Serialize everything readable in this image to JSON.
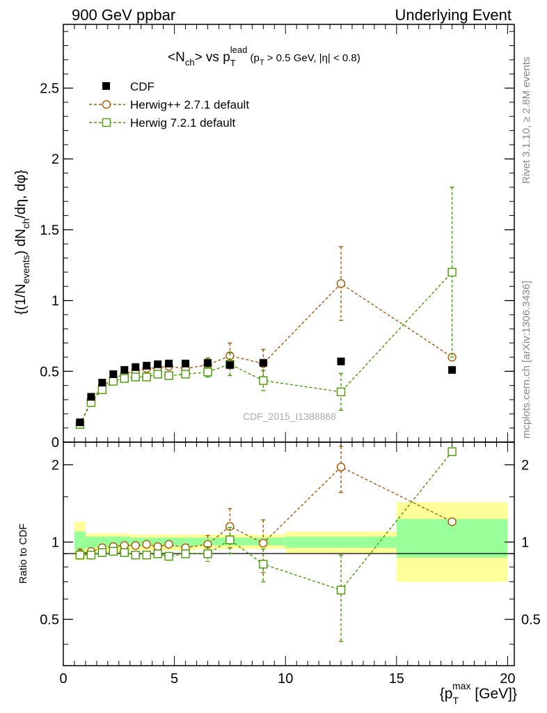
{
  "header": {
    "left": "900 GeV ppbar",
    "right": "Underlying Event"
  },
  "side_labels": {
    "rivet": "Rivet 3.1.10, ≥ 2.8M events",
    "mcplots": "mcplots.cern.ch [arXiv:1306.3436]"
  },
  "watermark": "CDF_2015_I1388868",
  "chart_data": [
    {
      "type": "scatter",
      "title": {
        "prefix": "<N",
        "sub1": "ch",
        "mid": "> vs p",
        "sub2": "T",
        "sup2": "lead",
        "cut_a": " (p",
        "cut_sub": "T",
        "cut_b": " > 0.5 GeV, |η| < 0.8)"
      },
      "ylabel": {
        "p1": "{(1/N",
        "sub1": "events",
        "p2": ") dN",
        "sub2": "ch",
        "p3": "/dη, dφ}"
      },
      "ylim": [
        0,
        2.95
      ],
      "yticks": [
        {
          "v": 0,
          "label": "0"
        },
        {
          "v": 0.5,
          "label": "0.5"
        },
        {
          "v": 1,
          "label": "1"
        },
        {
          "v": 1.5,
          "label": "1.5"
        },
        {
          "v": 2,
          "label": "2"
        },
        {
          "v": 2.5,
          "label": "2.5"
        }
      ],
      "xlim": [
        0,
        20.3
      ],
      "legend_position": "top-left",
      "series": [
        {
          "name": "CDF",
          "color": "#000000",
          "marker": "filled-square",
          "points": [
            {
              "x": 0.75,
              "y": 0.14
            },
            {
              "x": 1.25,
              "y": 0.32
            },
            {
              "x": 1.75,
              "y": 0.42
            },
            {
              "x": 2.25,
              "y": 0.48
            },
            {
              "x": 2.75,
              "y": 0.51
            },
            {
              "x": 3.25,
              "y": 0.53
            },
            {
              "x": 3.75,
              "y": 0.54
            },
            {
              "x": 4.25,
              "y": 0.55
            },
            {
              "x": 4.75,
              "y": 0.555
            },
            {
              "x": 5.5,
              "y": 0.555
            },
            {
              "x": 6.5,
              "y": 0.56
            },
            {
              "x": 7.5,
              "y": 0.545
            },
            {
              "x": 9.0,
              "y": 0.56
            },
            {
              "x": 12.5,
              "y": 0.57
            },
            {
              "x": 17.5,
              "y": 0.51
            }
          ]
        },
        {
          "name": "Herwig++ 2.7.1 default",
          "color": "#aa5500",
          "marker": "open-circle",
          "points": [
            {
              "x": 0.75,
              "y": 0.125,
              "err": 0.01
            },
            {
              "x": 1.25,
              "y": 0.29,
              "err": 0.015
            },
            {
              "x": 1.75,
              "y": 0.39,
              "err": 0.015
            },
            {
              "x": 2.25,
              "y": 0.45,
              "err": 0.015
            },
            {
              "x": 2.75,
              "y": 0.48,
              "err": 0.015
            },
            {
              "x": 3.25,
              "y": 0.505,
              "err": 0.015
            },
            {
              "x": 3.75,
              "y": 0.52,
              "err": 0.02
            },
            {
              "x": 4.25,
              "y": 0.525,
              "err": 0.02
            },
            {
              "x": 4.75,
              "y": 0.535,
              "err": 0.02
            },
            {
              "x": 5.5,
              "y": 0.52,
              "err": 0.02
            },
            {
              "x": 6.5,
              "y": 0.545,
              "err": 0.05
            },
            {
              "x": 7.5,
              "y": 0.61,
              "err": 0.09
            },
            {
              "x": 9.0,
              "y": 0.555,
              "err": 0.1
            },
            {
              "x": 12.5,
              "y": 1.12,
              "err": 0.26
            },
            {
              "x": 17.5,
              "y": 0.6,
              "err": 0
            }
          ]
        },
        {
          "name": "Herwig 7.2.1 default",
          "color": "#449900",
          "marker": "open-square",
          "points": [
            {
              "x": 0.75,
              "y": 0.125,
              "err": 0.01
            },
            {
              "x": 1.25,
              "y": 0.28,
              "err": 0.015
            },
            {
              "x": 1.75,
              "y": 0.37,
              "err": 0.015
            },
            {
              "x": 2.25,
              "y": 0.43,
              "err": 0.015
            },
            {
              "x": 2.75,
              "y": 0.45,
              "err": 0.015
            },
            {
              "x": 3.25,
              "y": 0.46,
              "err": 0.015
            },
            {
              "x": 3.75,
              "y": 0.46,
              "err": 0.015
            },
            {
              "x": 4.25,
              "y": 0.48,
              "err": 0.02
            },
            {
              "x": 4.75,
              "y": 0.47,
              "err": 0.02
            },
            {
              "x": 5.5,
              "y": 0.48,
              "err": 0.02
            },
            {
              "x": 6.5,
              "y": 0.495,
              "err": 0.035
            },
            {
              "x": 7.5,
              "y": 0.55,
              "err": 0.08
            },
            {
              "x": 9.0,
              "y": 0.435,
              "err": 0.07
            },
            {
              "x": 12.5,
              "y": 0.355,
              "err": 0.13
            },
            {
              "x": 17.5,
              "y": 1.2,
              "err": 0.6
            }
          ]
        }
      ]
    },
    {
      "type": "scatter",
      "ylabel": "Ratio to CDF",
      "xlabel": {
        "p1": "{p",
        "sub": "T",
        "sup": "max",
        "p2": " [GeV]}"
      },
      "ylim": [
        0.33,
        2.45
      ],
      "yticks": [
        {
          "v": 0.5,
          "label": "0.5"
        },
        {
          "v": 1,
          "label": "1"
        },
        {
          "v": 2,
          "label": "2"
        }
      ],
      "xlim": [
        0,
        20.3
      ],
      "xticks": [
        {
          "v": 0,
          "label": "0"
        },
        {
          "v": 5,
          "label": "5"
        },
        {
          "v": 10,
          "label": "10"
        },
        {
          "v": 15,
          "label": "15"
        },
        {
          "v": 20,
          "label": "20"
        }
      ],
      "bands": [
        {
          "x0": 0.5,
          "x1": 1.0,
          "green": [
            0.93,
            1.1
          ],
          "yellow": [
            0.85,
            1.2
          ]
        },
        {
          "x0": 1.0,
          "x1": 3.0,
          "green": [
            0.95,
            1.05
          ],
          "yellow": [
            0.92,
            1.08
          ]
        },
        {
          "x0": 3.0,
          "x1": 6.0,
          "green": [
            0.96,
            1.04
          ],
          "yellow": [
            0.93,
            1.07
          ]
        },
        {
          "x0": 6.0,
          "x1": 10.0,
          "green": [
            0.97,
            1.04
          ],
          "yellow": [
            0.94,
            1.07
          ]
        },
        {
          "x0": 10.0,
          "x1": 15.0,
          "green": [
            0.95,
            1.05
          ],
          "yellow": [
            0.9,
            1.1
          ]
        },
        {
          "x0": 15.0,
          "x1": 20.0,
          "green": [
            0.87,
            1.23
          ],
          "yellow": [
            0.7,
            1.43
          ]
        }
      ],
      "series": [
        {
          "name": "Herwig++ 2.7.1 default",
          "color": "#aa5500",
          "marker": "open-circle",
          "points": [
            {
              "x": 0.75,
              "y": 0.9,
              "err": 0.04
            },
            {
              "x": 1.25,
              "y": 0.92,
              "err": 0.03
            },
            {
              "x": 1.75,
              "y": 0.95,
              "err": 0.03
            },
            {
              "x": 2.25,
              "y": 0.96,
              "err": 0.03
            },
            {
              "x": 2.75,
              "y": 0.97,
              "err": 0.02
            },
            {
              "x": 3.25,
              "y": 0.97,
              "err": 0.02
            },
            {
              "x": 3.75,
              "y": 0.98,
              "err": 0.02
            },
            {
              "x": 4.25,
              "y": 0.96,
              "err": 0.02
            },
            {
              "x": 4.75,
              "y": 0.98,
              "err": 0.02
            },
            {
              "x": 5.5,
              "y": 0.95,
              "err": 0.03
            },
            {
              "x": 6.5,
              "y": 0.98,
              "err": 0.08
            },
            {
              "x": 7.5,
              "y": 1.15,
              "err": 0.2
            },
            {
              "x": 9.0,
              "y": 0.99,
              "err": 0.23
            },
            {
              "x": 12.5,
              "y": 1.96,
              "err": 0.4
            },
            {
              "x": 17.5,
              "y": 1.2,
              "err": 0
            }
          ]
        },
        {
          "name": "Herwig 7.2.1 default",
          "color": "#449900",
          "marker": "open-square",
          "points": [
            {
              "x": 0.75,
              "y": 0.89,
              "err": 0.03
            },
            {
              "x": 1.25,
              "y": 0.89,
              "err": 0.03
            },
            {
              "x": 1.75,
              "y": 0.91,
              "err": 0.03
            },
            {
              "x": 2.25,
              "y": 0.92,
              "err": 0.03
            },
            {
              "x": 2.75,
              "y": 0.91,
              "err": 0.02
            },
            {
              "x": 3.25,
              "y": 0.89,
              "err": 0.02
            },
            {
              "x": 3.75,
              "y": 0.89,
              "err": 0.02
            },
            {
              "x": 4.25,
              "y": 0.9,
              "err": 0.03
            },
            {
              "x": 4.75,
              "y": 0.88,
              "err": 0.03
            },
            {
              "x": 5.5,
              "y": 0.9,
              "err": 0.03
            },
            {
              "x": 6.5,
              "y": 0.9,
              "err": 0.06
            },
            {
              "x": 7.5,
              "y": 1.02,
              "err": 0.12
            },
            {
              "x": 9.0,
              "y": 0.82,
              "err": 0.12
            },
            {
              "x": 12.5,
              "y": 0.65,
              "err": 0.24
            },
            {
              "x": 17.5,
              "y": 2.25,
              "err": 0
            }
          ]
        }
      ]
    }
  ]
}
